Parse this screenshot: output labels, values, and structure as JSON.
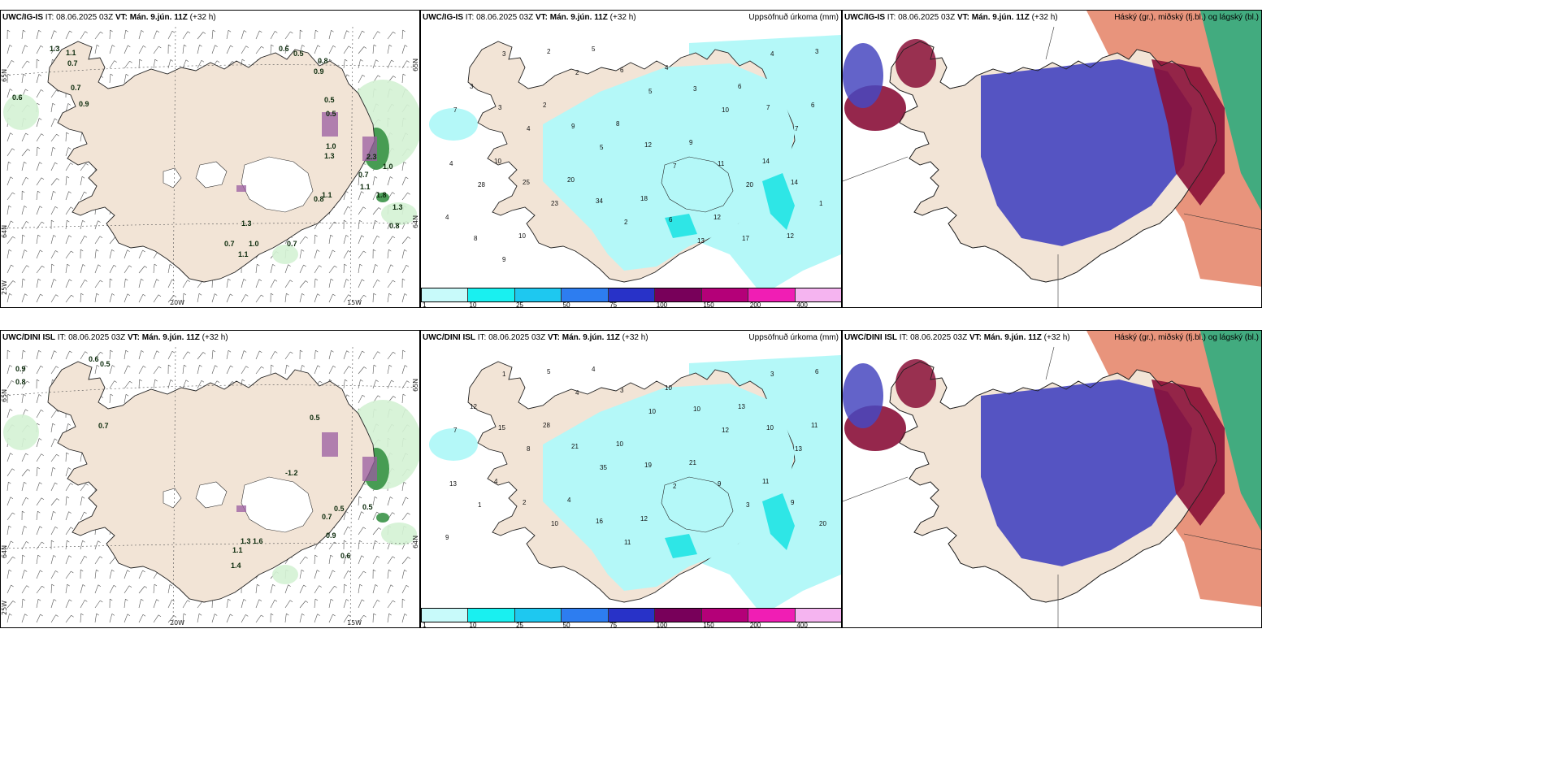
{
  "rows": [
    {
      "model": "UWC/IG-IS",
      "panels": [
        {
          "model": "UWC/IG-IS",
          "it": "IT: 08.06.2025 03Z",
          "vt_label": "VT:",
          "vt": "Mán. 9.jún. 11Z",
          "lead": "(+32 h)",
          "right_title": ""
        },
        {
          "model": "UWC/IG-IS",
          "it": "IT: 08.06.2025 03Z",
          "vt_label": "VT:",
          "vt": "Mán. 9.jún. 11Z",
          "lead": "(+32 h)",
          "right_title": "Uppsöfnuð úrkoma (mm)"
        },
        {
          "model": "UWC/IG-IS",
          "it": "IT: 08.06.2025 03Z",
          "vt_label": "VT:",
          "vt": "Mán. 9.jún. 11Z",
          "lead": "(+32 h)",
          "right_title": "Háský (gr.), miðský (fj.bl.) og lágský (bl.)"
        }
      ],
      "temp_labels": [
        "1.3",
        "1.1",
        "0.7",
        "0.7",
        "0.9",
        "0.6",
        "0.6",
        "0.5",
        "0.8",
        "0.9",
        "0.5",
        "0.5",
        "1.0",
        "1.3",
        "0.7",
        "1.1",
        "1.8",
        "1.3",
        "0.8",
        "0.7",
        "1.3",
        "1.0",
        "1.1",
        "0.7",
        "0.8",
        "1.1",
        "2.3",
        "1.0"
      ],
      "precip_labels": [
        "3",
        "2",
        "5",
        "4",
        "3",
        "2",
        "6",
        "4",
        "3",
        "5",
        "3",
        "6",
        "7",
        "3",
        "2",
        "10",
        "7",
        "6",
        "4",
        "9",
        "8",
        "7",
        "5",
        "12",
        "9",
        "4",
        "10",
        "7",
        "11",
        "14",
        "28",
        "25",
        "20",
        "20",
        "14",
        "23",
        "34",
        "18",
        "1",
        "4",
        "2",
        "6",
        "12",
        "8",
        "10",
        "13",
        "17",
        "12",
        "9"
      ],
      "lon_labels": [
        "20W",
        "15W"
      ],
      "lat_labels": [
        "65N",
        "64N",
        "65N",
        "64N",
        "25W"
      ]
    },
    {
      "model": "UWC/DINI ISL",
      "panels": [
        {
          "model": "UWC/DINI ISL",
          "it": "IT: 08.06.2025 03Z",
          "vt_label": "VT:",
          "vt": "Mán. 9.jún. 11Z",
          "lead": "(+32 h)",
          "right_title": ""
        },
        {
          "model": "UWC/DINI ISL",
          "it": "IT: 08.06.2025 03Z",
          "vt_label": "VT:",
          "vt": "Mán. 9.jún. 11Z",
          "lead": "(+32 h)",
          "right_title": "Uppsöfnuð úrkoma (mm)"
        },
        {
          "model": "UWC/DINI ISL",
          "it": "IT: 08.06.2025 03Z",
          "vt_label": "VT:",
          "vt": "Mán. 9.jún. 11Z",
          "lead": "(+32 h)",
          "right_title": "Háský (gr.), miðský (fj.bl.) og lágský (bl.)"
        }
      ],
      "temp_labels": [
        "0.9",
        "0.8",
        "0.6",
        "0.5",
        "0.7",
        "0.5",
        "-1.2",
        "0.5",
        "0.7",
        "0.9",
        "1.3",
        "1.6",
        "0.5",
        "1.1",
        "1.4",
        "0.6"
      ],
      "precip_labels": [
        "1",
        "5",
        "4",
        "3",
        "6",
        "4",
        "3",
        "10",
        "12",
        "10",
        "10",
        "13",
        "7",
        "15",
        "28",
        "12",
        "10",
        "11",
        "8",
        "21",
        "10",
        "13",
        "35",
        "19",
        "21",
        "13",
        "4",
        "2",
        "9",
        "11",
        "1",
        "2",
        "4",
        "3",
        "9",
        "10",
        "16",
        "12",
        "20",
        "9",
        "11"
      ],
      "lon_labels": [
        "20W",
        "15W"
      ],
      "lat_labels": [
        "65N",
        "64N",
        "65N",
        "64N",
        "25W"
      ]
    }
  ],
  "colorbar": {
    "ticks": [
      "1",
      "10",
      "25",
      "50",
      "75",
      "100",
      "150",
      "200",
      "400"
    ],
    "colors": [
      "#c8fafa",
      "#19f0f0",
      "#1ec8f0",
      "#2d7df0",
      "#2832c8",
      "#78005a",
      "#b40078",
      "#f01eb4",
      "#f5b4f0"
    ]
  },
  "colors": {
    "land": "#f2e4d6",
    "precip_light": "#b4f8f8",
    "precip_med": "#2ee6e6",
    "green_light": "#d4f2d4",
    "green_dark": "#2e8c3c",
    "cloud_low": "#4848c0",
    "cloud_mid": "#8a1038",
    "cloud_high": "#e07050",
    "cloud_green": "#18b080"
  }
}
